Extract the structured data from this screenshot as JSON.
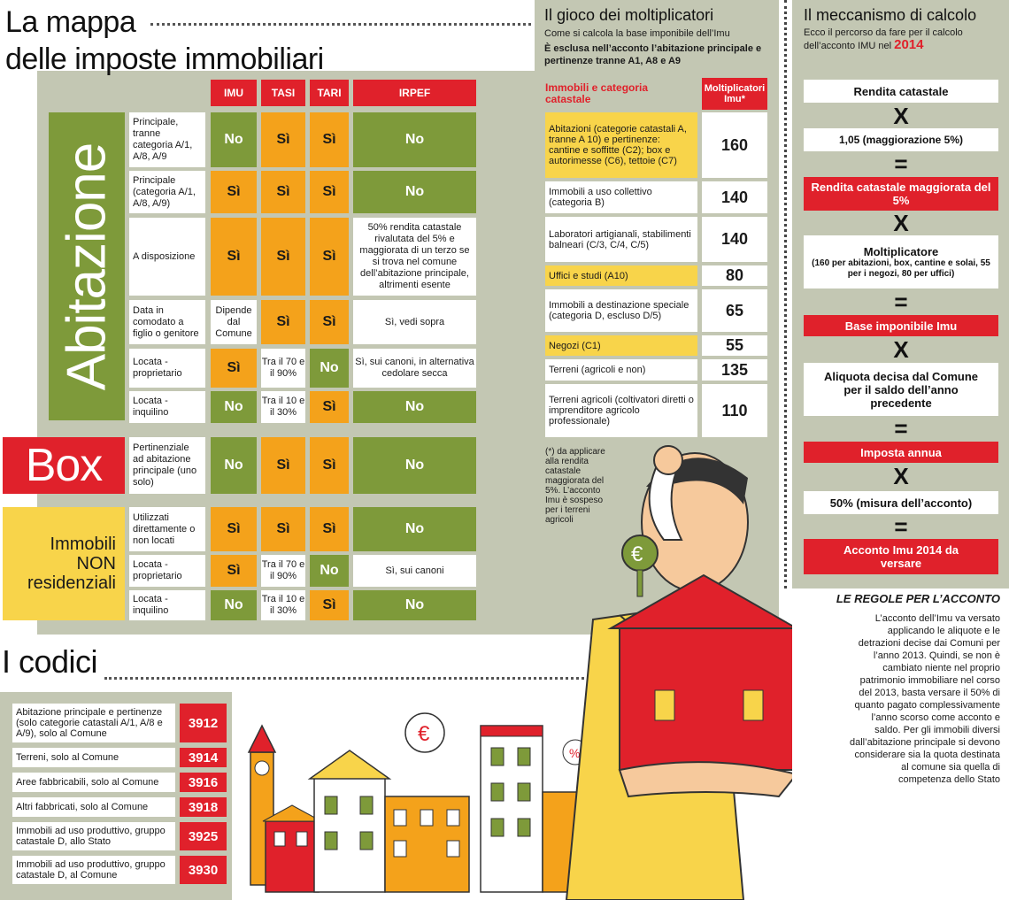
{
  "title": {
    "line1": "La mappa",
    "line2": "delle imposte immobiliari"
  },
  "columns": [
    "IMU",
    "TASI",
    "TARI",
    "IRPEF"
  ],
  "categories": {
    "abitazione": "Abitazione",
    "box": "Box",
    "non_res": [
      "Immobili",
      "NON",
      "residenziali"
    ]
  },
  "rows": [
    {
      "label": "Principale, tranne categoria A/1, A/8, A/9",
      "imu": "No",
      "tasi": "Sì",
      "tari": "Sì",
      "irpef": "No"
    },
    {
      "label": "Principale (categoria A/1, A/8, A/9)",
      "imu": "Sì",
      "tasi": "Sì",
      "tari": "Sì",
      "irpef": "No"
    },
    {
      "label": "A disposizione",
      "imu": "Sì",
      "tasi": "Sì",
      "tari": "Sì",
      "irpef": "50% rendita catastale rivalutata del 5% e maggiorata di un terzo se si trova nel comune dell’abitazione principale, altrimenti esente"
    },
    {
      "label": "Data in comodato a figlio o genitore",
      "imu": "Dipende dal Comune",
      "tasi": "Sì",
      "tari": "Sì",
      "irpef": "Sì, vedi sopra"
    },
    {
      "label": "Locata - proprietario",
      "imu": "Sì",
      "tasi": "Tra il 70 e il 90%",
      "tari": "No",
      "irpef": "Sì, sui canoni, in alternativa cedolare secca"
    },
    {
      "label": "Locata - inquilino",
      "imu": "No",
      "tasi": "Tra il 10 e il 30%",
      "tari": "Sì",
      "irpef": "No"
    },
    {
      "label": "Pertinenziale ad abitazione principale (uno solo)",
      "imu": "No",
      "tasi": "Sì",
      "tari": "Sì",
      "irpef": "No"
    },
    {
      "label": "Utilizzati direttamente o non locati",
      "imu": "Sì",
      "tasi": "Sì",
      "tari": "Sì",
      "irpef": "No"
    },
    {
      "label": "Locata - proprietario",
      "imu": "Sì",
      "tasi": "Tra il 70 e il 90%",
      "tari": "No",
      "irpef": "Sì, sui canoni"
    },
    {
      "label": "Locata - inquilino",
      "imu": "No",
      "tasi": "Tra il 10 e il 30%",
      "tari": "Sì",
      "irpef": "No"
    }
  ],
  "multipliers": {
    "title": "Il gioco dei moltiplicatori",
    "subtitle": "Come si calcola la base imponibile dell’Imu",
    "note_bold": "È esclusa nell’acconto l’abitazione principale e pertinenze tranne A1, A8 e A9",
    "col_left": "Immobili e categoria catastale",
    "col_right": "Moltiplicatori Imu*",
    "items": [
      {
        "label": "Abitazioni (categorie catastali A, tranne A 10) e pertinenze: cantine e soffitte (C2); box e autorimesse (C6), tettoie (C7)",
        "value": "160"
      },
      {
        "label": "Immobili a uso collettivo (categoria B)",
        "value": "140"
      },
      {
        "label": "Laboratori artigianali, stabilimenti balneari (C/3, C/4, C/5)",
        "value": "140"
      },
      {
        "label": "Uffici e studi (A10)",
        "value": "80"
      },
      {
        "label": "Immobili a destinazione speciale (categoria D, escluso D/5)",
        "value": "65"
      },
      {
        "label": "Negozi (C1)",
        "value": "55"
      },
      {
        "label": "Terreni (agricoli e non)",
        "value": "135"
      },
      {
        "label": "Terreni agricoli (coltivatori diretti o imprenditore agricolo professionale)",
        "value": "110"
      }
    ],
    "footnote": "(*) da applicare alla rendita catastale maggiorata del 5%. L’acconto Imu è sospeso per i terreni agricoli"
  },
  "calc": {
    "title": "Il meccanismo di calcolo",
    "subtitle": "Ecco il percorso da fare per il calcolo dell’acconto IMU nel",
    "year": "2014",
    "steps": [
      "Rendita catastale",
      "1,05 (maggiorazione 5%)",
      "Rendita catastale maggiorata del 5%",
      "Moltiplicatore",
      "(160 per abitazioni, box, cantine e solai, 55 per i negozi, 80 per uffici)",
      "Base imponibile Imu",
      "Aliquota decisa dal Comune per il saldo dell’anno precedente",
      "Imposta annua",
      "50% (misura dell’acconto)",
      "Acconto Imu 2014 da versare"
    ],
    "op_x": "X",
    "op_eq": "="
  },
  "rules": {
    "title": "LE REGOLE PER L’ACCONTO",
    "text": "L’acconto dell’Imu va versato applicando le aliquote e le detrazioni decise dai Comuni per l’anno 2013. Quindi, se non è cambiato niente nel proprio patrimonio immobiliare nel corso del 2013, basta versare il 50% di quanto pagato complessivamente l’anno scorso come acconto e saldo. Per gli immobili diversi dall’abitazione principale si devono considerare sia la quota destinata al comune sia quella di competenza dello Stato"
  },
  "codes": {
    "title": "I codici",
    "items": [
      {
        "label": "Abitazione principale e pertinenze (solo categorie catastali A/1, A/8 e A/9), solo al Comune",
        "code": "3912"
      },
      {
        "label": "Terreni, solo al Comune",
        "code": "3914"
      },
      {
        "label": "Aree fabbricabili, solo al Comune",
        "code": "3916"
      },
      {
        "label": "Altri fabbricati, solo al Comune",
        "code": "3918"
      },
      {
        "label": "Immobili ad uso produttivo, gruppo catastale D, allo Stato",
        "code": "3925"
      },
      {
        "label": "Immobili ad uso produttivo, gruppo catastale D, al Comune",
        "code": "3930"
      }
    ]
  },
  "illustration": {
    "euro": "€",
    "percent": "%"
  },
  "colors": {
    "red": "#e0212b",
    "green": "#7e9a3a",
    "orange": "#f4a21b",
    "yellow": "#f8d44a",
    "panel": "#c3c7b3"
  }
}
